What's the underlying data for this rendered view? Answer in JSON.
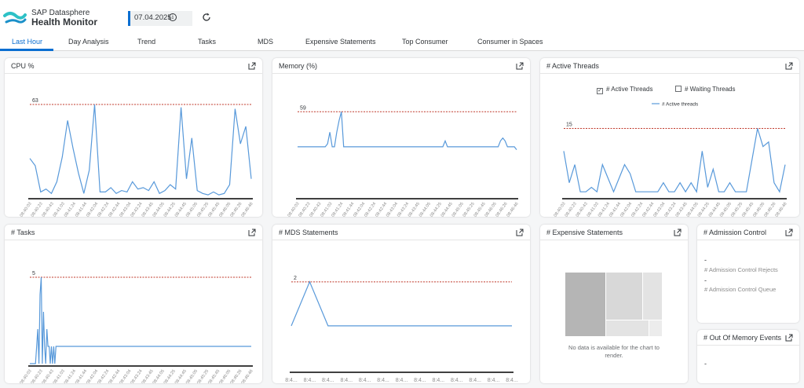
{
  "app": {
    "subtitle": "SAP Datasphere",
    "title": "Health Monitor"
  },
  "toolbar": {
    "date": "07.04.2025",
    "info_glyph": "i"
  },
  "tabs": [
    "Last Hour",
    "Day Analysis",
    "Trend",
    "Tasks",
    "MDS",
    "Expensive Statements",
    "Top Consumer",
    "Consumer in Spaces"
  ],
  "cards": {
    "cpu": "CPU %",
    "memory": "Memory (%)",
    "threads": "# Active Threads",
    "tasks": "# Tasks",
    "mds": "# MDS Statements",
    "expensive": "# Expensive Statements",
    "admission": "# Admission Control",
    "oom": "# Out Of Memory Events"
  },
  "threads_legend": {
    "active": "# Active Threads",
    "waiting": "# Waiting Threads",
    "series": "# Active threads",
    "check_glyph": "✓"
  },
  "expensive": {
    "nodata": "No data is available for the chart to render."
  },
  "admission": {
    "rejects_value": "-",
    "rejects_label": "# Admission Control Rejects",
    "queue_value": "-",
    "queue_label": "# Admission Control Queue"
  },
  "oom": {
    "value": "-"
  },
  "colors": {
    "accent": "#0a6ed1",
    "line": "#5899da",
    "threshold": "#c0392b"
  },
  "chart_data": [
    {
      "id": "cpu",
      "type": "line",
      "title": "CPU %",
      "threshold": 63,
      "ylim": [
        0,
        70
      ],
      "xticks": [
        "08:40:03",
        "08:40:23",
        "08:40:43",
        "08:41:03",
        "08:41:24",
        "08:41:44",
        "08:42:04",
        "08:42:24",
        "08:42:44",
        "08:43:04",
        "08:43:24",
        "08:43:45",
        "08:44:05",
        "08:44:25",
        "08:44:45",
        "08:45:05",
        "08:45:25",
        "08:45:45",
        "08:46:05",
        "08:46:26",
        "08:46:46"
      ],
      "values": [
        26,
        21,
        3,
        5,
        2,
        10,
        27,
        52,
        33,
        16,
        2,
        18,
        63,
        3,
        3,
        6,
        2,
        4,
        3,
        10,
        5,
        6,
        4,
        10,
        2,
        4,
        8,
        5,
        61,
        12,
        40,
        4,
        2,
        1,
        3,
        1,
        2,
        8,
        60,
        36,
        48,
        12
      ]
    },
    {
      "id": "memory",
      "type": "line",
      "title": "Memory (%)",
      "threshold": 59,
      "ylim": [
        30,
        65
      ],
      "xticks": [
        "08:40:03",
        "08:40:23",
        "08:40:43",
        "08:41:03",
        "08:41:24",
        "08:41:44",
        "08:42:04",
        "08:42:24",
        "08:42:44",
        "08:43:04",
        "08:43:24",
        "08:43:45",
        "08:44:05",
        "08:44:25",
        "08:44:45",
        "08:45:05",
        "08:45:25",
        "08:45:45",
        "08:46:05",
        "08:46:26",
        "08:46:46"
      ],
      "values": [
        47,
        47,
        47,
        47,
        47,
        47,
        47,
        47,
        47,
        47,
        47,
        47,
        47,
        48,
        52,
        47,
        47,
        52,
        56,
        59,
        47,
        47,
        47,
        47,
        47,
        47,
        47,
        47,
        47,
        47,
        47,
        47,
        47,
        47,
        47,
        47,
        47,
        47,
        47,
        47,
        47,
        47,
        47,
        47,
        47,
        47,
        47,
        47,
        47,
        47,
        47,
        47,
        47,
        47,
        47,
        47,
        47,
        47,
        47,
        47,
        47,
        47,
        47,
        47,
        49,
        47,
        47,
        47,
        47,
        47,
        47,
        47,
        47,
        47,
        47,
        47,
        47,
        47,
        47,
        47,
        47,
        47,
        47,
        47,
        47,
        47,
        47,
        47,
        49,
        50,
        49,
        47,
        47,
        47,
        47,
        46
      ]
    },
    {
      "id": "threads",
      "type": "line",
      "title": "# Active Threads",
      "threshold": 15,
      "ylim": [
        0,
        17
      ],
      "series_name": "# Active threads",
      "xticks": [
        "08:40:03",
        "08:40:23",
        "08:40:43",
        "08:41:03",
        "08:41:24",
        "08:41:44",
        "08:42:04",
        "08:42:24",
        "08:42:44",
        "08:43:04",
        "08:43:24",
        "08:43:45",
        "08:44:05",
        "08:44:25",
        "08:44:45",
        "08:45:05",
        "08:45:25",
        "08:45:45",
        "08:46:05",
        "08:46:26",
        "08:46:46"
      ],
      "values": [
        10,
        3,
        7,
        1,
        1,
        2,
        1,
        7,
        4,
        1,
        4,
        7,
        5,
        1,
        1,
        1,
        1,
        1,
        3,
        1,
        1,
        3,
        1,
        3,
        1,
        10,
        2,
        6,
        1,
        1,
        3,
        1,
        1,
        1,
        8,
        15,
        11,
        12,
        3,
        1,
        7
      ]
    },
    {
      "id": "tasks",
      "type": "line",
      "title": "# Tasks",
      "threshold": 5,
      "ylim": [
        0,
        5.5
      ],
      "xticks": [
        "08:40:03",
        "08:40:23",
        "08:40:43",
        "08:41:03",
        "08:41:24",
        "08:41:44",
        "08:42:04",
        "08:42:24",
        "08:42:44",
        "08:43:04",
        "08:43:24",
        "08:43:45",
        "08:44:05",
        "08:44:25",
        "08:44:45",
        "08:45:05",
        "08:45:25",
        "08:45:45",
        "08:46:05",
        "08:46:26",
        "08:46:46"
      ],
      "values": [
        0,
        0,
        0,
        0,
        0,
        0,
        1,
        2,
        0,
        4,
        5,
        0,
        3,
        1,
        0,
        2,
        1,
        1,
        0,
        1,
        0,
        1,
        0,
        1,
        1,
        1,
        1,
        1,
        1,
        1,
        1,
        1,
        1,
        1,
        1,
        1,
        1,
        1,
        1,
        1,
        1,
        1,
        1,
        1,
        1,
        1,
        1,
        1,
        1,
        1,
        1,
        1,
        1,
        1,
        1,
        1,
        1,
        1,
        1,
        1,
        1,
        1,
        1,
        1,
        1,
        1,
        1,
        1,
        1,
        1,
        1,
        1,
        1,
        1,
        1,
        1,
        1,
        1,
        1,
        1,
        1,
        1,
        1,
        1,
        1,
        1,
        1,
        1,
        1,
        1,
        1,
        1,
        1,
        1,
        1,
        1,
        1,
        1,
        1,
        1,
        1,
        1,
        1,
        1,
        1,
        1,
        1,
        1,
        1,
        1,
        1,
        1,
        1,
        1,
        1,
        1,
        1,
        1,
        1,
        1,
        1,
        1,
        1,
        1,
        1,
        1,
        1,
        1,
        1,
        1,
        1,
        1,
        1,
        1,
        1,
        1,
        1,
        1,
        1,
        1,
        1,
        1,
        1,
        1,
        1,
        1,
        1,
        1,
        1,
        1,
        1,
        1,
        1,
        1,
        1,
        1,
        1,
        1,
        1,
        1,
        1,
        1,
        1,
        1,
        1,
        1,
        1,
        1,
        1,
        1,
        1,
        1,
        1,
        1,
        1,
        1,
        1,
        1,
        1,
        1,
        1,
        1,
        1,
        1,
        1,
        1,
        1,
        1,
        1,
        1,
        1,
        1,
        1,
        1,
        1,
        1
      ]
    },
    {
      "id": "mds",
      "type": "line",
      "title": "# MDS Statements",
      "threshold": 2,
      "ylim": [
        0,
        2.3
      ],
      "xticks": [
        "8:4...",
        "8:4...",
        "8:4...",
        "8:4...",
        "8:4...",
        "8:4...",
        "8:4...",
        "8:4...",
        "8:4...",
        "8:4...",
        "8:4...",
        "8:4...",
        "8:4..."
      ],
      "values": [
        1,
        2,
        1,
        1,
        1,
        1,
        1,
        1,
        1,
        1,
        1,
        1,
        1
      ]
    }
  ]
}
